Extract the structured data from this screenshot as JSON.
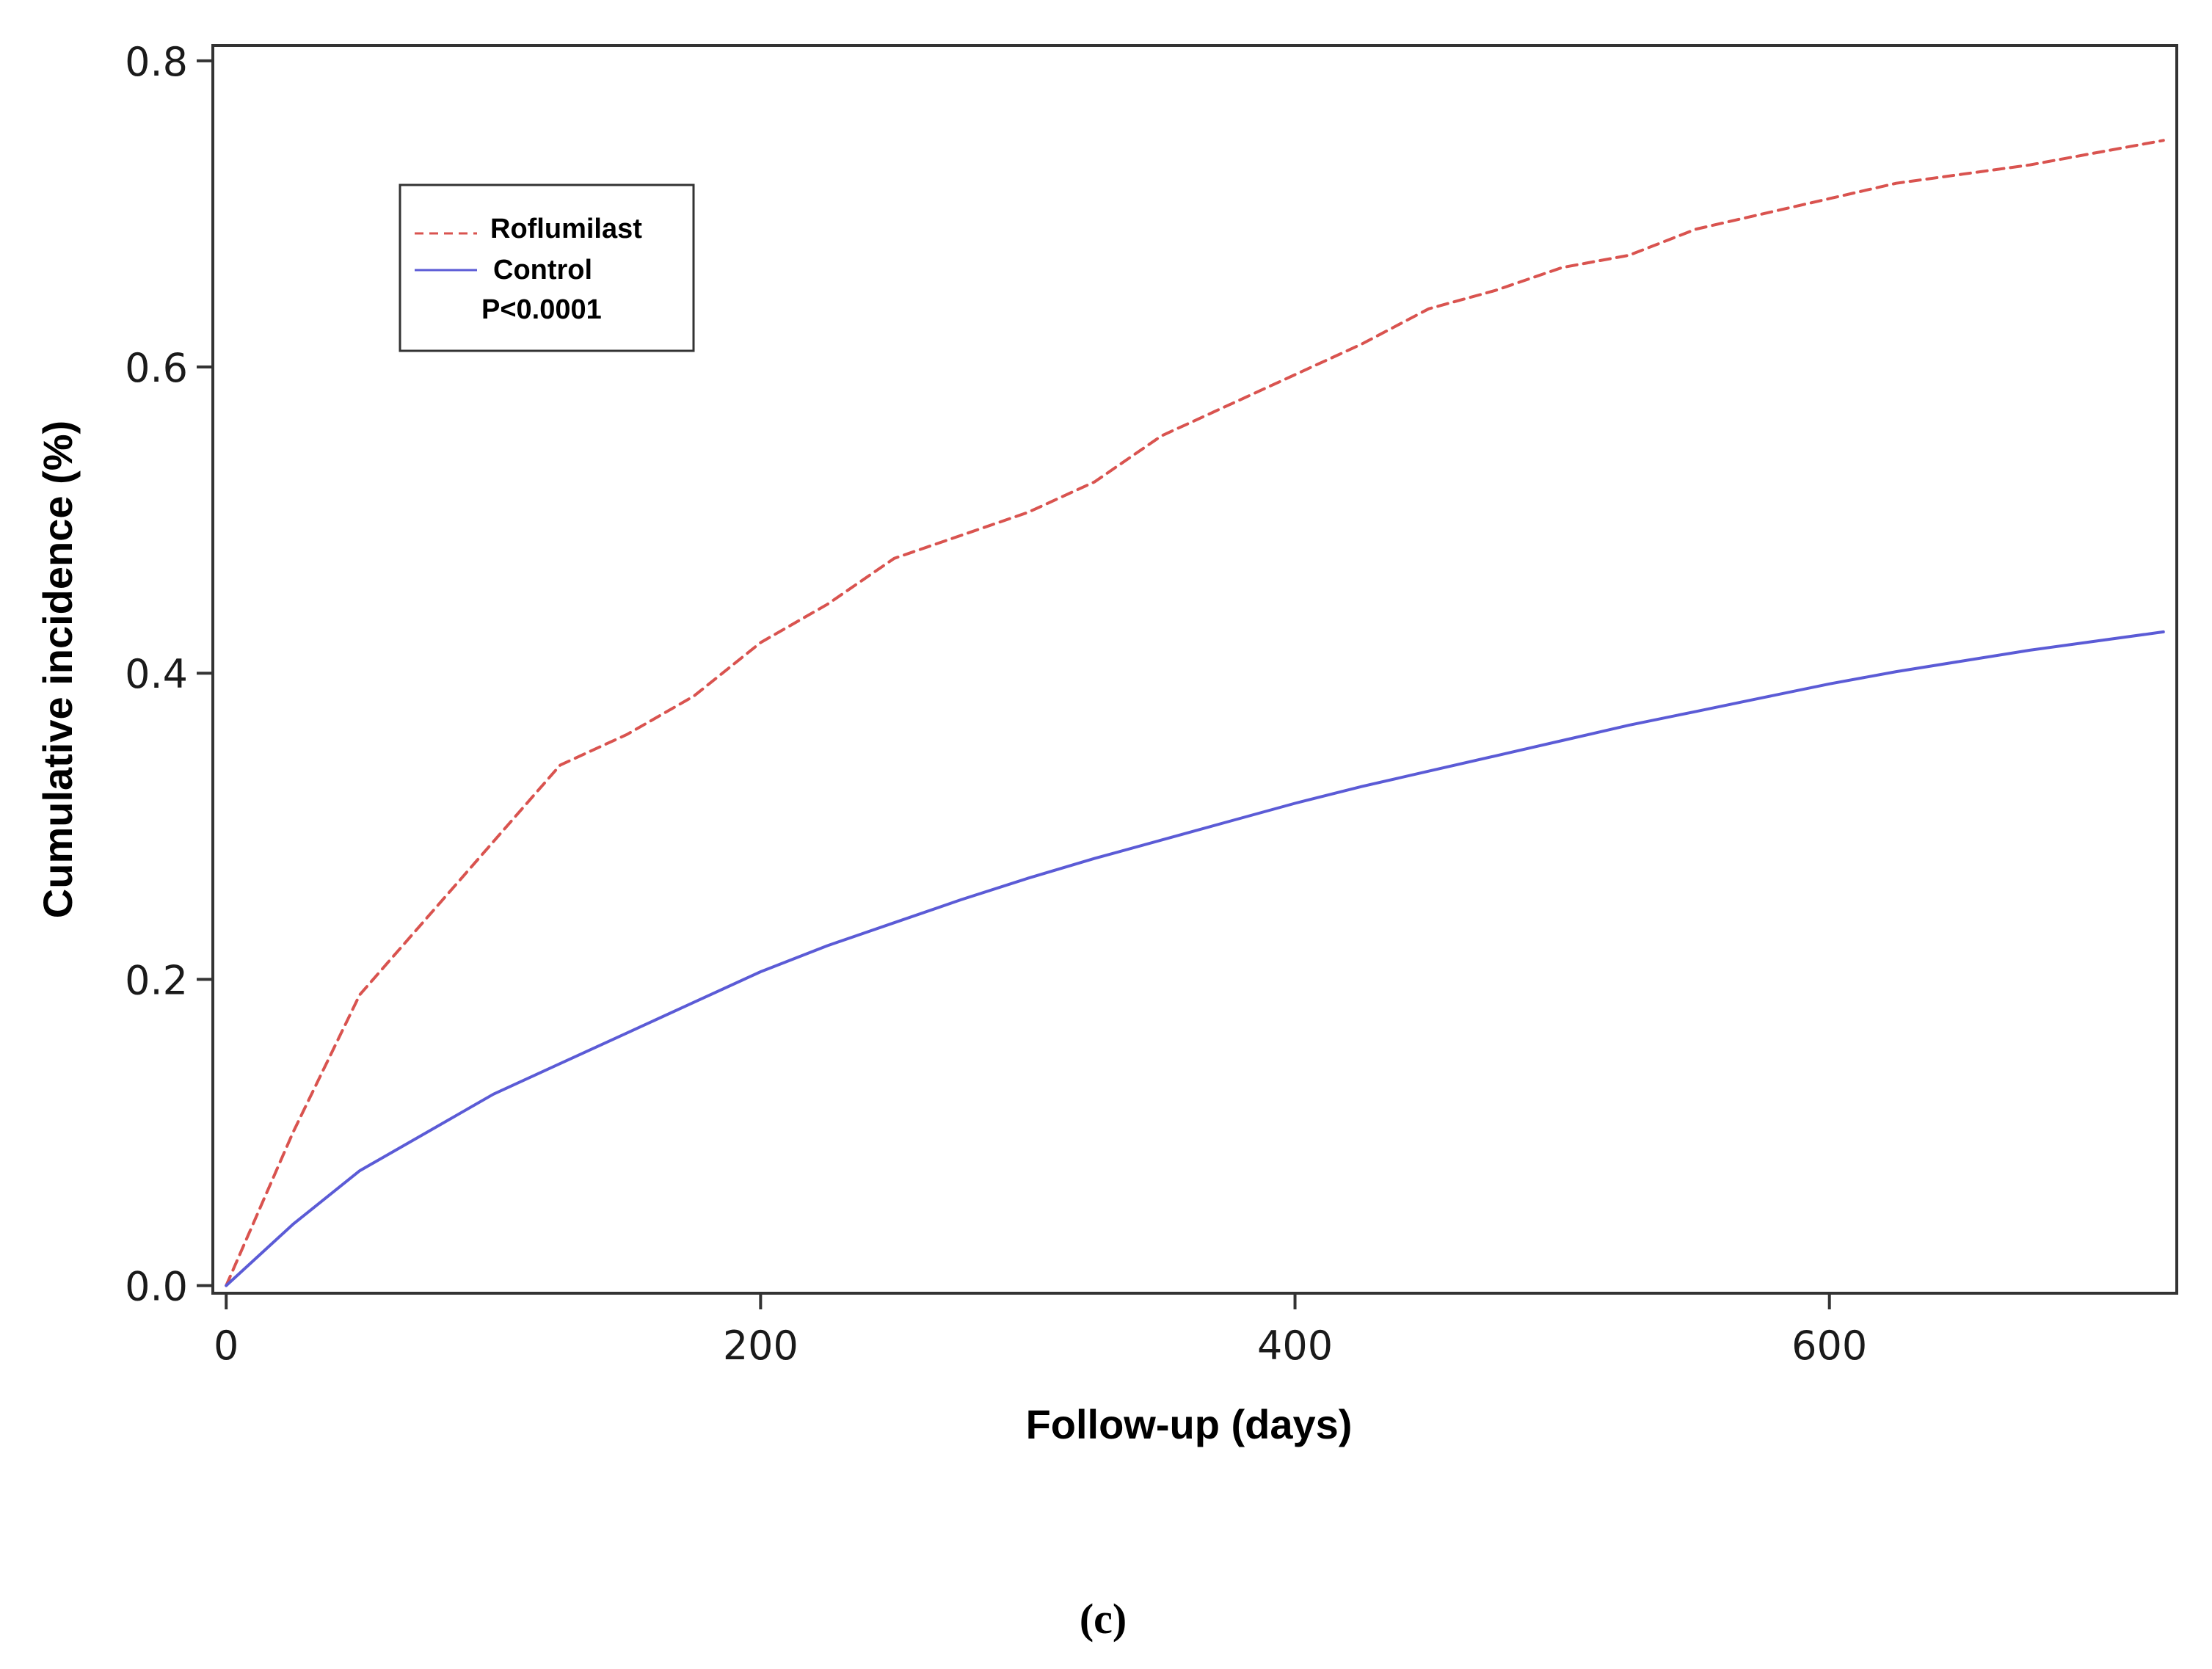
{
  "chart_data": {
    "type": "line",
    "xlabel": "Follow-up (days)",
    "ylabel": "Cumulative incidence (%)",
    "xlim": [
      -5,
      730
    ],
    "ylim": [
      -0.005,
      0.81
    ],
    "xticks": [
      0,
      200,
      400,
      600
    ],
    "yticks": [
      0.0,
      0.2,
      0.4,
      0.6,
      0.8
    ],
    "xtick_labels": [
      "0",
      "200",
      "400",
      "600"
    ],
    "ytick_labels": [
      "0.0",
      "0.2",
      "0.4",
      "0.6",
      "0.8"
    ],
    "grid": false,
    "legend_position": "top-left",
    "annotation": "P<0.0001",
    "caption": "(c)",
    "series": [
      {
        "name": "Roflumilast",
        "color": "#d9534f",
        "style": "dashed",
        "x": [
          0,
          25,
          50,
          75,
          100,
          125,
          150,
          175,
          200,
          225,
          250,
          275,
          300,
          325,
          350,
          375,
          400,
          425,
          450,
          475,
          500,
          525,
          550,
          575,
          600,
          625,
          650,
          675,
          700,
          725
        ],
        "y": [
          0.0,
          0.1,
          0.19,
          0.24,
          0.29,
          0.34,
          0.36,
          0.385,
          0.42,
          0.445,
          0.475,
          0.49,
          0.505,
          0.525,
          0.555,
          0.575,
          0.595,
          0.615,
          0.638,
          0.65,
          0.665,
          0.673,
          0.69,
          0.7,
          0.71,
          0.72,
          0.726,
          0.732,
          0.74,
          0.748
        ]
      },
      {
        "name": "Control",
        "color": "#5b5bd6",
        "style": "solid",
        "x": [
          0,
          25,
          50,
          75,
          100,
          125,
          150,
          175,
          200,
          225,
          250,
          275,
          300,
          325,
          350,
          375,
          400,
          425,
          450,
          475,
          500,
          525,
          550,
          575,
          600,
          625,
          650,
          675,
          700,
          725
        ],
        "y": [
          0.0,
          0.04,
          0.075,
          0.1,
          0.125,
          0.145,
          0.165,
          0.185,
          0.205,
          0.222,
          0.237,
          0.252,
          0.266,
          0.279,
          0.291,
          0.303,
          0.315,
          0.326,
          0.336,
          0.346,
          0.356,
          0.366,
          0.375,
          0.384,
          0.393,
          0.401,
          0.408,
          0.415,
          0.421,
          0.427
        ]
      }
    ]
  }
}
